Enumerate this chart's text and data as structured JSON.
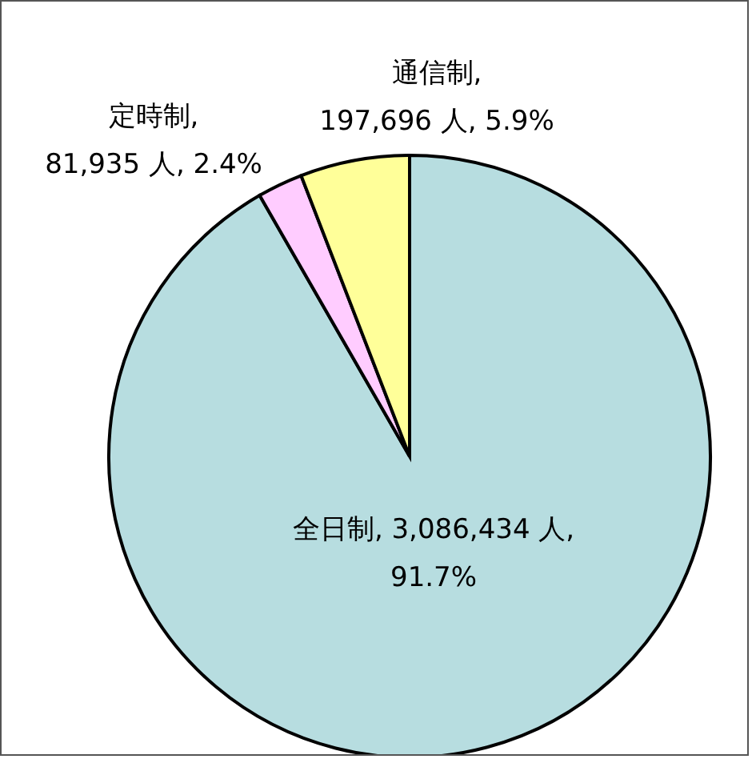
{
  "chart_data": {
    "type": "pie",
    "categories": [
      "全日制",
      "定時制",
      "通信制"
    ],
    "values": [
      3086434,
      81935,
      197696
    ],
    "colors": [
      "#b7dde0",
      "#ffccff",
      "#ffff99"
    ],
    "value_labels": [
      ", 3,086,434 人, 91.7%",
      ", 81,935 人, 2.4%",
      ", 197,696 人, 5.9%"
    ]
  }
}
